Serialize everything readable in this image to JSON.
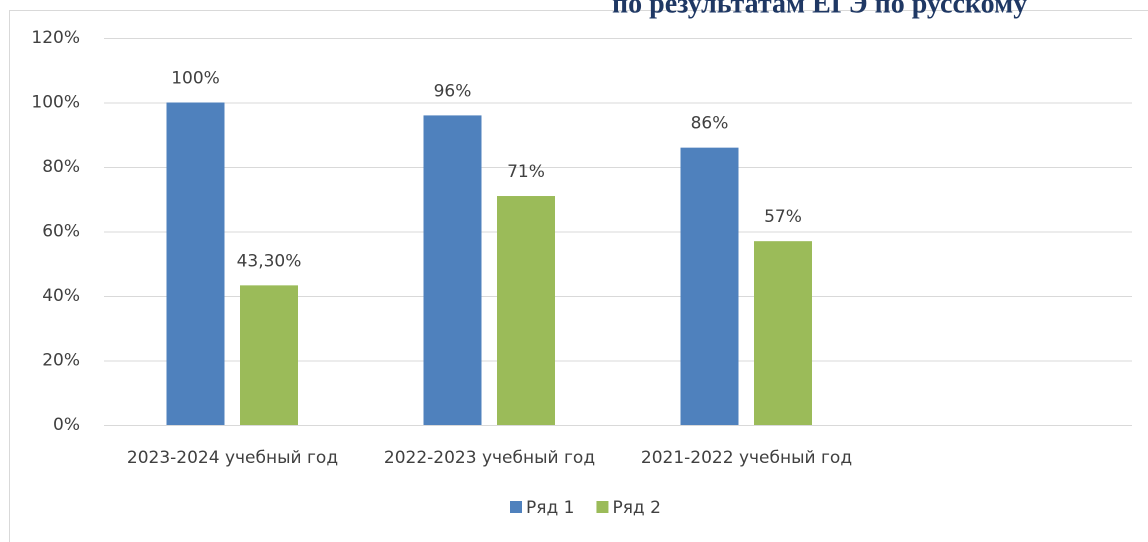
{
  "chart_data": {
    "type": "bar",
    "title": "по результатам ЕГЭ по русскому",
    "categories": [
      "2023-2024 учебный год",
      "2022-2023 учебный год",
      "2021-2022 учебный год",
      null
    ],
    "series": [
      {
        "name": "Ряд 1",
        "color": "#4f81bd",
        "values": [
          100,
          96,
          86,
          null
        ],
        "value_labels": [
          "100%",
          "96%",
          "86%",
          null
        ]
      },
      {
        "name": "Ряд 2",
        "color": "#9bbb59",
        "values": [
          43.3,
          71,
          57,
          null
        ],
        "value_labels": [
          "43,30%",
          "71%",
          "57%",
          null
        ]
      }
    ],
    "ylim": [
      0,
      120
    ],
    "yticks": [
      {
        "value": 0,
        "label": "0%"
      },
      {
        "value": 20,
        "label": "20%"
      },
      {
        "value": 40,
        "label": "40%"
      },
      {
        "value": 60,
        "label": "60%"
      },
      {
        "value": 80,
        "label": "80%"
      },
      {
        "value": 100,
        "label": "100%"
      },
      {
        "value": 120,
        "label": "120%"
      }
    ],
    "grid": true,
    "legend": "bottom"
  }
}
